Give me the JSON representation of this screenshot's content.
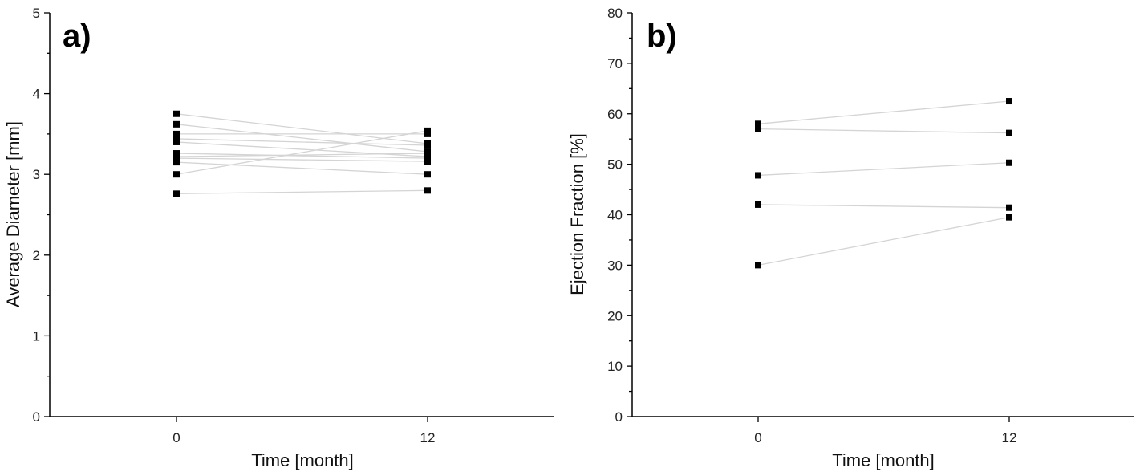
{
  "chart_data": [
    {
      "panel_label": "a)",
      "type": "scatter",
      "xlabel": "Time [month]",
      "ylabel": "Average Diameter [mm]",
      "x_ticks": [
        "0",
        "12"
      ],
      "y_ticks": [
        "0",
        "1",
        "2",
        "3",
        "4",
        "5"
      ],
      "ylim": [
        0,
        5
      ],
      "marker_color": "#000000",
      "line_color": "#d4d4d4",
      "pairs": [
        {
          "start": 3.75,
          "end": 3.38
        },
        {
          "start": 3.62,
          "end": 3.28
        },
        {
          "start": 3.5,
          "end": 3.5
        },
        {
          "start": 3.44,
          "end": 3.36
        },
        {
          "start": 3.4,
          "end": 3.22
        },
        {
          "start": 3.26,
          "end": 3.2
        },
        {
          "start": 3.22,
          "end": 3.26
        },
        {
          "start": 3.2,
          "end": 3.16
        },
        {
          "start": 3.15,
          "end": 3.0
        },
        {
          "start": 3.0,
          "end": 3.54
        },
        {
          "start": 2.76,
          "end": 2.8
        }
      ]
    },
    {
      "panel_label": "b)",
      "type": "scatter",
      "xlabel": "Time [month]",
      "ylabel": "Ejection Fraction [%]",
      "x_ticks": [
        "0",
        "12"
      ],
      "y_ticks": [
        "0",
        "10",
        "20",
        "30",
        "40",
        "50",
        "60",
        "70",
        "80"
      ],
      "ylim": [
        0,
        80
      ],
      "marker_color": "#000000",
      "line_color": "#d4d4d4",
      "pairs": [
        {
          "start": 58.0,
          "end": 62.5
        },
        {
          "start": 57.0,
          "end": 56.2
        },
        {
          "start": 47.8,
          "end": 50.3
        },
        {
          "start": 42.0,
          "end": 41.4
        },
        {
          "start": 30.0,
          "end": 39.5
        }
      ]
    }
  ]
}
